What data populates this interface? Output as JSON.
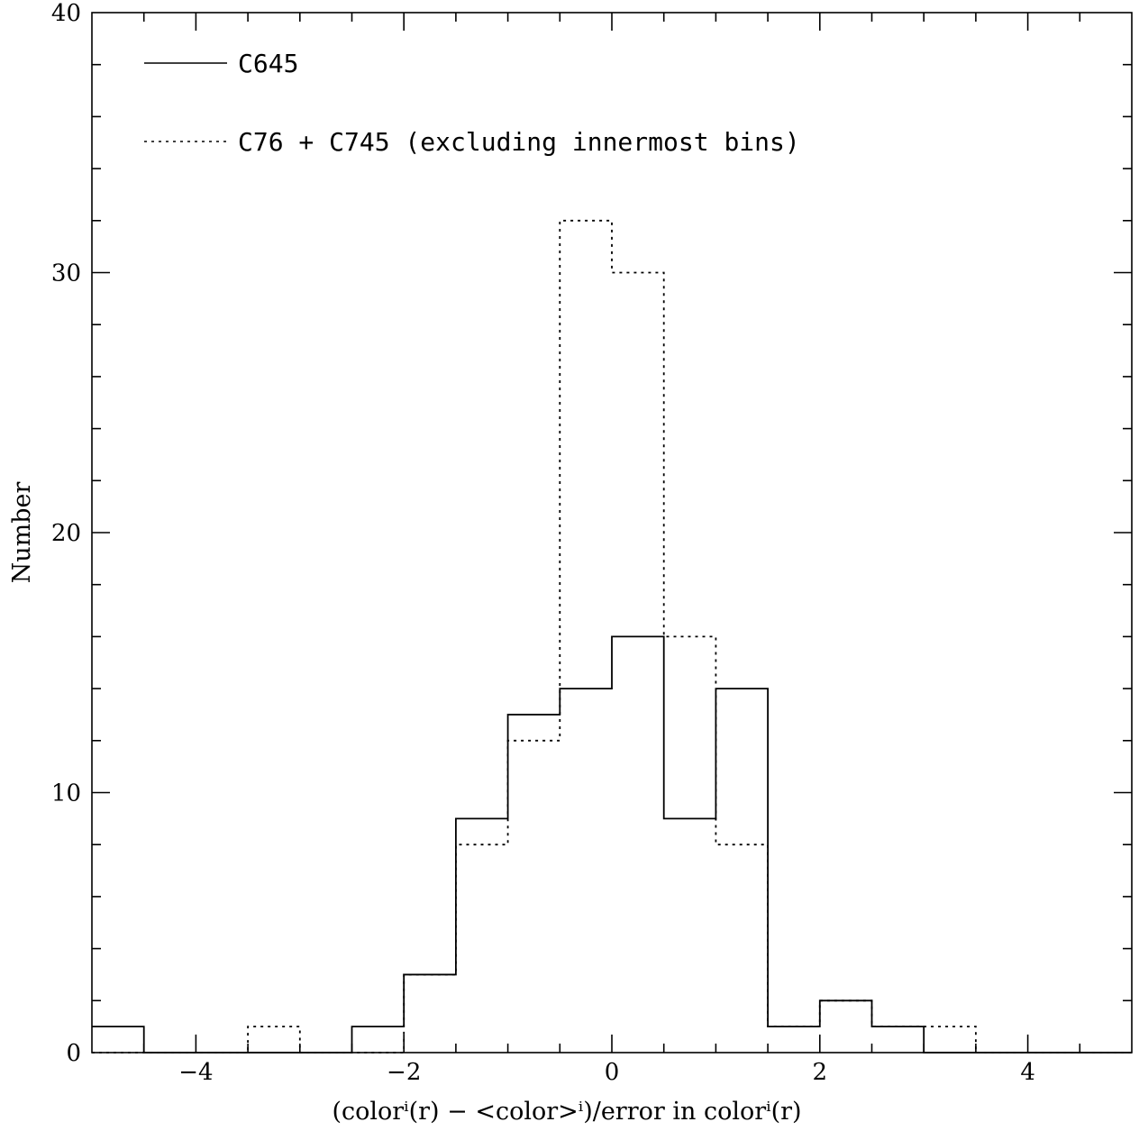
{
  "chart_data": {
    "type": "histogram",
    "xlabel": "(colorⁱ(r) − <color>ⁱ)/error in colorⁱ(r)",
    "ylabel": "Number",
    "xlim": [
      -5,
      5
    ],
    "ylim": [
      0,
      40
    ],
    "x_ticks": [
      -4,
      -2,
      0,
      2,
      4
    ],
    "x_tick_labels": [
      "−4",
      "−2",
      "0",
      "2",
      "4"
    ],
    "y_ticks": [
      0,
      10,
      20,
      30,
      40
    ],
    "y_tick_labels": [
      "0",
      "10",
      "20",
      "30",
      "40"
    ],
    "bin_edges": [
      -5.0,
      -4.5,
      -4.0,
      -3.5,
      -3.0,
      -2.5,
      -2.0,
      -1.5,
      -1.0,
      -0.5,
      0.0,
      0.5,
      1.0,
      1.5,
      2.0,
      2.5,
      3.0,
      3.5,
      4.0,
      4.5,
      5.0
    ],
    "series": [
      {
        "name": "C645",
        "style": "solid",
        "counts": [
          1,
          0,
          0,
          0,
          0,
          1,
          3,
          9,
          13,
          14,
          16,
          9,
          14,
          1,
          2,
          1,
          0,
          0,
          0,
          0
        ]
      },
      {
        "name": "C76 + C745 (excluding innermost bins)",
        "style": "dotted",
        "counts": [
          0,
          0,
          0,
          1,
          0,
          0,
          3,
          8,
          12,
          32,
          30,
          16,
          8,
          1,
          2,
          1,
          1,
          0,
          0,
          0
        ]
      }
    ],
    "legend_position": "top-left",
    "grid": false,
    "colors": {
      "line": "#000000",
      "background": "#ffffff"
    }
  }
}
